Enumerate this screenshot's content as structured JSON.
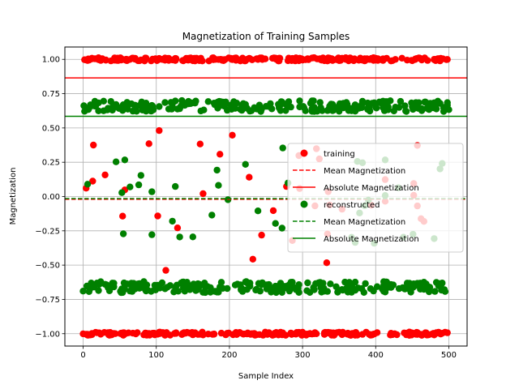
{
  "chart_data": {
    "type": "scatter",
    "title": "Magnetization of Training Samples",
    "xlabel": "Sample Index",
    "ylabel": "Magnetization",
    "xlim": [
      -25,
      525
    ],
    "ylim": [
      -1.09,
      1.09
    ],
    "xticks": [
      0,
      100,
      200,
      300,
      400,
      500
    ],
    "yticks": [
      -1.0,
      -0.75,
      -0.5,
      -0.25,
      0.0,
      0.25,
      0.5,
      0.75,
      1.0
    ],
    "ytick_labels": [
      "−1.00",
      "−0.75",
      "−0.50",
      "−0.25",
      "0.00",
      "0.25",
      "0.50",
      "0.75",
      "1.00"
    ],
    "grid": true,
    "legend_position": "center-right",
    "series": [
      {
        "name": "training",
        "kind": "scatter",
        "color": "#ff0000",
        "clusters": [
          {
            "level": 1.0,
            "count": 250,
            "spread": 0.012
          },
          {
            "level": -1.0,
            "count": 230,
            "spread": 0.012
          },
          {
            "level": 0.0,
            "count": 40,
            "spread": 0.45
          }
        ]
      },
      {
        "name": "Mean Magnetization",
        "kind": "hline",
        "y": -0.02,
        "style": "dashed",
        "color": "#ff0000"
      },
      {
        "name": "Absolute Magnetization",
        "kind": "hline",
        "y": 0.865,
        "style": "solid",
        "color": "#ff0000"
      },
      {
        "name": "reconstructed",
        "kind": "scatter",
        "color": "#008000",
        "clusters": [
          {
            "level": 0.66,
            "count": 240,
            "spread": 0.04
          },
          {
            "level": -0.66,
            "count": 230,
            "spread": 0.04
          },
          {
            "level": 0.0,
            "count": 40,
            "spread": 0.3
          }
        ]
      },
      {
        "name": "Mean Magnetization",
        "kind": "hline",
        "y": -0.015,
        "style": "dashed",
        "color": "#008000"
      },
      {
        "name": "Absolute Magnetization",
        "kind": "hline",
        "y": 0.585,
        "style": "solid",
        "color": "#008000"
      }
    ]
  }
}
